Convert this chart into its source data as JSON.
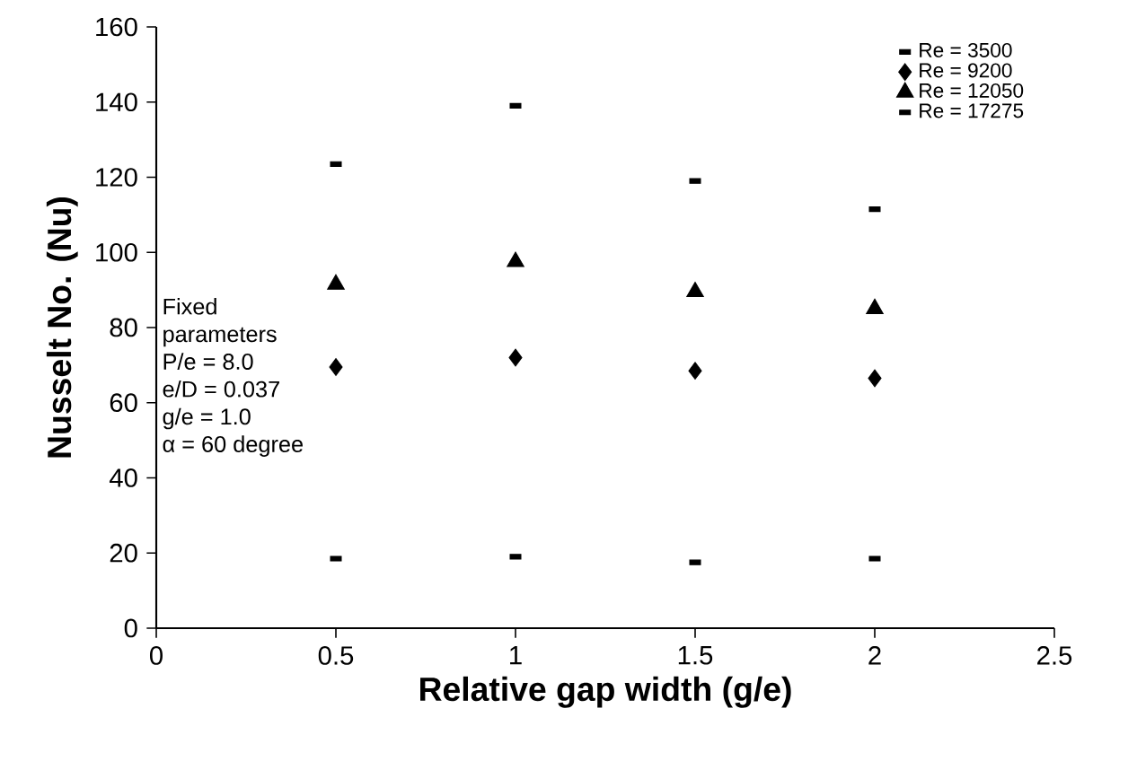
{
  "chart_data": {
    "type": "scatter",
    "xlabel": "Relative gap width (g/e)",
    "ylabel": "Nusselt No. (Nu)",
    "x": [
      0.5,
      1,
      1.5,
      2
    ],
    "series": [
      {
        "name": "Re = 3500",
        "color": "#000000",
        "marker": "square",
        "values": [
          18.5,
          19,
          17.5,
          18.5
        ]
      },
      {
        "name": "Re = 9200",
        "color": "#000000",
        "marker": "diamond",
        "values": [
          69.5,
          72,
          68.5,
          66.5
        ]
      },
      {
        "name": "Re = 12050",
        "color": "#000000",
        "marker": "triangle",
        "values": [
          91.5,
          97.5,
          89.5,
          85
        ]
      },
      {
        "name": "Re = 17275",
        "color": "#000000",
        "marker": "square",
        "values": [
          123.5,
          139,
          119,
          111.5
        ]
      }
    ],
    "xlim": [
      0,
      2.5
    ],
    "xticks": [
      0,
      0.5,
      1,
      1.5,
      2,
      2.5
    ],
    "ylim": [
      0,
      160
    ],
    "yticks": [
      0,
      20,
      40,
      60,
      80,
      100,
      120,
      140,
      160
    ],
    "grid": false,
    "legend": "top right",
    "annotations": [
      "Fixed",
      "parameters",
      "P/e = 8.0",
      "e/D = 0.037",
      "g/e = 1.0",
      "α = 60 degree"
    ]
  }
}
